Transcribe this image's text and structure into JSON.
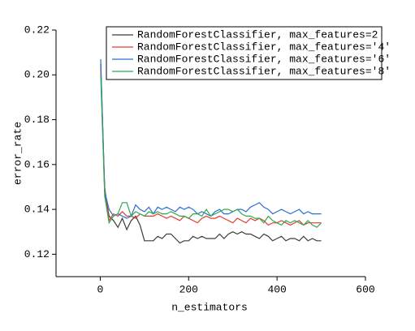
{
  "chart_data": {
    "type": "line",
    "xlabel": "n_estimators",
    "ylabel": "error_rate",
    "x": [
      1,
      10,
      20,
      30,
      40,
      50,
      60,
      70,
      80,
      90,
      100,
      110,
      120,
      130,
      140,
      150,
      160,
      170,
      180,
      190,
      200,
      210,
      220,
      230,
      240,
      250,
      260,
      270,
      280,
      290,
      300,
      310,
      320,
      330,
      340,
      350,
      360,
      370,
      380,
      390,
      400,
      410,
      420,
      430,
      440,
      450,
      460,
      470,
      480,
      490,
      500
    ],
    "xlim": [
      -100,
      600
    ],
    "xticks": [
      0,
      200,
      400,
      600
    ],
    "ylim": [
      0.11,
      0.22
    ],
    "yticks": [
      {
        "value": 0.12,
        "label": "0.12"
      },
      {
        "value": 0.14,
        "label": "0.14"
      },
      {
        "value": 0.16,
        "label": "0.16"
      },
      {
        "value": 0.18,
        "label": "0.18"
      },
      {
        "value": 0.2,
        "label": "0.20"
      },
      {
        "value": 0.22,
        "label": "0.22"
      }
    ],
    "legend": "top-right",
    "series": [
      {
        "name": "RandomForestClassifier, max_features=2",
        "color": "#3c3c3c",
        "values": [
          0.205,
          0.148,
          0.137,
          0.135,
          0.132,
          0.136,
          0.131,
          0.135,
          0.137,
          0.133,
          0.126,
          0.126,
          0.126,
          0.128,
          0.127,
          0.129,
          0.129,
          0.127,
          0.125,
          0.126,
          0.126,
          0.128,
          0.127,
          0.128,
          0.127,
          0.127,
          0.127,
          0.129,
          0.127,
          0.129,
          0.13,
          0.129,
          0.13,
          0.129,
          0.129,
          0.128,
          0.127,
          0.129,
          0.128,
          0.126,
          0.127,
          0.128,
          0.126,
          0.127,
          0.127,
          0.126,
          0.128,
          0.126,
          0.127,
          0.126,
          0.126
        ]
      },
      {
        "name": "RandomForestClassifier, max_features='4'",
        "color": "#e03c31",
        "values": [
          0.203,
          0.15,
          0.135,
          0.138,
          0.137,
          0.139,
          0.137,
          0.137,
          0.136,
          0.138,
          0.137,
          0.137,
          0.137,
          0.138,
          0.137,
          0.136,
          0.137,
          0.136,
          0.135,
          0.137,
          0.136,
          0.135,
          0.134,
          0.136,
          0.137,
          0.136,
          0.136,
          0.137,
          0.136,
          0.135,
          0.134,
          0.136,
          0.135,
          0.134,
          0.136,
          0.135,
          0.136,
          0.135,
          0.133,
          0.134,
          0.134,
          0.135,
          0.134,
          0.133,
          0.134,
          0.135,
          0.133,
          0.134,
          0.134,
          0.134,
          0.134
        ]
      },
      {
        "name": "RandomForestClassifier, max_features='6'",
        "color": "#2a6fd6",
        "values": [
          0.207,
          0.148,
          0.14,
          0.137,
          0.138,
          0.137,
          0.136,
          0.137,
          0.142,
          0.14,
          0.139,
          0.141,
          0.138,
          0.141,
          0.14,
          0.141,
          0.14,
          0.139,
          0.141,
          0.14,
          0.141,
          0.14,
          0.138,
          0.139,
          0.138,
          0.137,
          0.139,
          0.14,
          0.138,
          0.138,
          0.139,
          0.14,
          0.14,
          0.139,
          0.141,
          0.142,
          0.143,
          0.141,
          0.14,
          0.138,
          0.139,
          0.14,
          0.139,
          0.138,
          0.139,
          0.14,
          0.138,
          0.139,
          0.138,
          0.138,
          0.138
        ]
      },
      {
        "name": "RandomForestClassifier, max_features='8'",
        "color": "#2fa84f",
        "values": [
          0.2,
          0.146,
          0.134,
          0.137,
          0.138,
          0.143,
          0.143,
          0.137,
          0.139,
          0.138,
          0.137,
          0.139,
          0.138,
          0.139,
          0.138,
          0.138,
          0.139,
          0.138,
          0.137,
          0.137,
          0.136,
          0.138,
          0.138,
          0.137,
          0.14,
          0.137,
          0.138,
          0.139,
          0.14,
          0.14,
          0.139,
          0.14,
          0.138,
          0.137,
          0.137,
          0.136,
          0.136,
          0.134,
          0.137,
          0.135,
          0.134,
          0.133,
          0.135,
          0.134,
          0.135,
          0.134,
          0.133,
          0.135,
          0.133,
          0.132,
          0.134
        ]
      }
    ]
  }
}
